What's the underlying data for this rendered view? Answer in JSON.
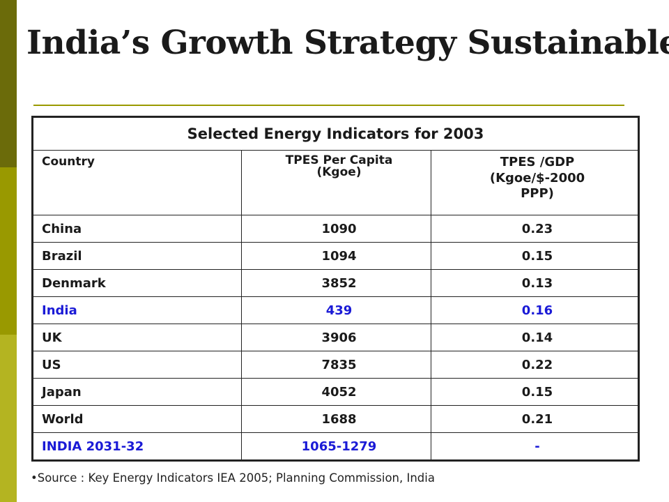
{
  "slide": {
    "title": "India’s Growth Strategy Sustainable",
    "accent_colors": [
      "#6b6b0a",
      "#999900",
      "#b4b421"
    ],
    "highlight_color": "#1a1ad6"
  },
  "table": {
    "caption": "Selected Energy Indicators for 2003",
    "headers": {
      "country": "Country",
      "tpes_per_capita_line1": "TPES Per Capita",
      "tpes_per_capita_line2": "(Kgoe)",
      "tpes_gdp_line1": "TPES /GDP",
      "tpes_gdp_line2": "(Kgoe/$-2000",
      "tpes_gdp_line3": "PPP)"
    },
    "rows": [
      {
        "country": "China",
        "per_capita": "1090",
        "per_gdp": "0.23",
        "highlight": false
      },
      {
        "country": "Brazil",
        "per_capita": "1094",
        "per_gdp": "0.15",
        "highlight": false
      },
      {
        "country": "Denmark",
        "per_capita": "3852",
        "per_gdp": "0.13",
        "highlight": false
      },
      {
        "country": "India",
        "per_capita": "439",
        "per_gdp": "0.16",
        "highlight": true
      },
      {
        "country": "UK",
        "per_capita": "3906",
        "per_gdp": "0.14",
        "highlight": false
      },
      {
        "country": "US",
        "per_capita": "7835",
        "per_gdp": "0.22",
        "highlight": false
      },
      {
        "country": "Japan",
        "per_capita": "4052",
        "per_gdp": "0.15",
        "highlight": false
      },
      {
        "country": "World",
        "per_capita": "1688",
        "per_gdp": "0.21",
        "highlight": false
      },
      {
        "country": "INDIA 2031-32",
        "per_capita": "1065-1279",
        "per_gdp": "-",
        "highlight": true
      }
    ]
  },
  "footer": {
    "source": "•Source : Key Energy Indicators IEA 2005;   Planning Commission, India"
  }
}
